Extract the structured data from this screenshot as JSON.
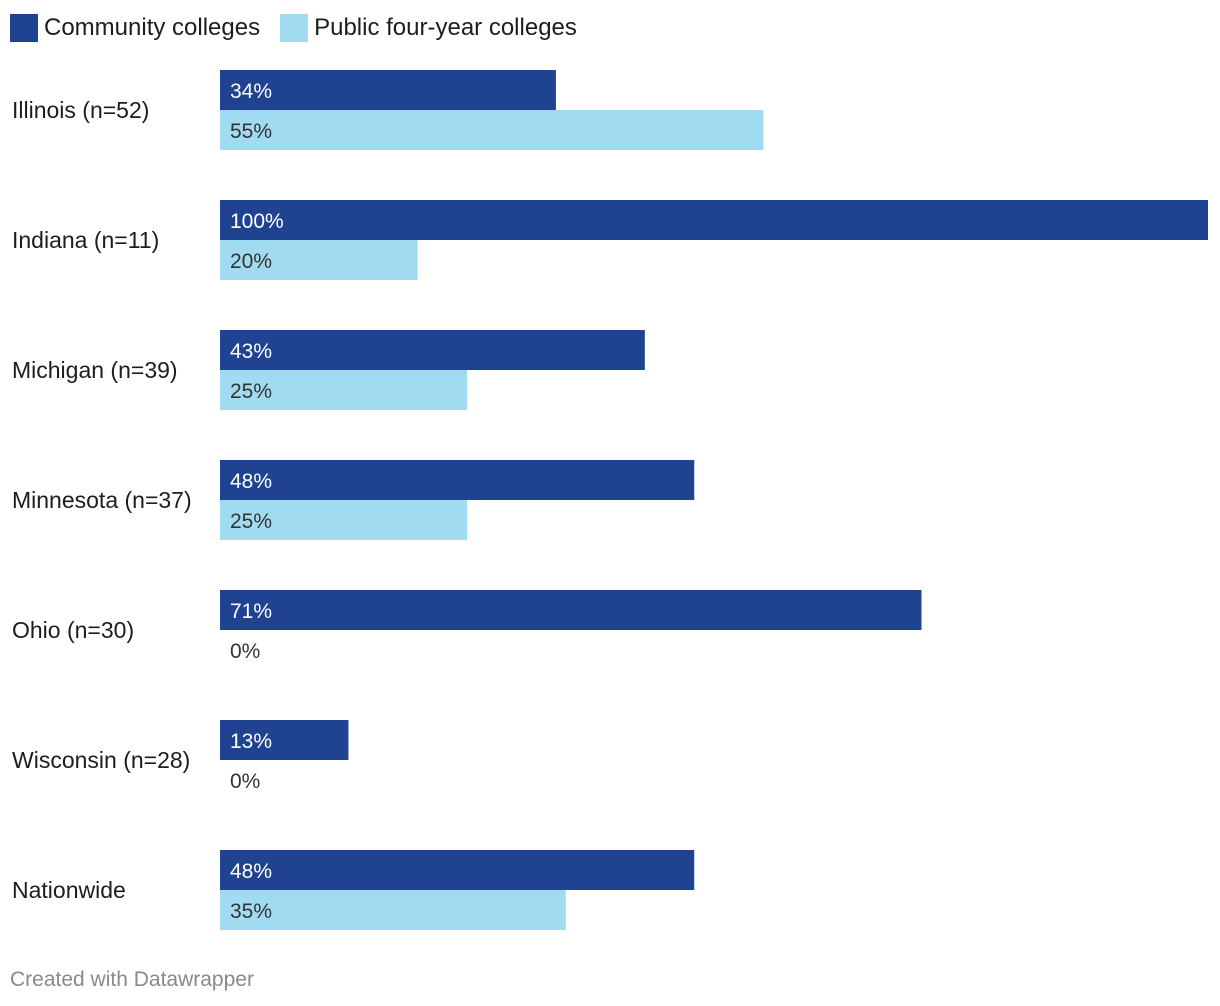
{
  "legend": {
    "community_label": "Community colleges",
    "public_label": "Public four-year colleges"
  },
  "colors": {
    "community": "#1f4390",
    "public": "#a1dbf2",
    "label_on_dark": "#ffffff",
    "label_on_light": "#333333",
    "category_text": "#1d1d1d"
  },
  "chart_data": {
    "type": "bar",
    "orientation": "horizontal",
    "categories": [
      "Illinois (n=52)",
      "Indiana (n=11)",
      "Michigan (n=39)",
      "Minnesota (n=37)",
      "Ohio (n=30)",
      "Wisconsin (n=28)",
      "Nationwide"
    ],
    "series": [
      {
        "name": "Community colleges",
        "values": [
          34,
          100,
          43,
          48,
          71,
          13,
          48
        ],
        "labels": [
          "34%",
          "100%",
          "43%",
          "48%",
          "71%",
          "13%",
          "48%"
        ]
      },
      {
        "name": "Public four-year colleges",
        "values": [
          55,
          20,
          25,
          25,
          0,
          0,
          35
        ],
        "labels": [
          "55%",
          "20%",
          "25%",
          "25%",
          "0%",
          "0%",
          "35%"
        ]
      }
    ],
    "xlim": [
      0,
      100
    ],
    "unit": "%",
    "legend_position": "top-left",
    "grid": false
  },
  "footer": {
    "credit": "Created with Datawrapper"
  }
}
